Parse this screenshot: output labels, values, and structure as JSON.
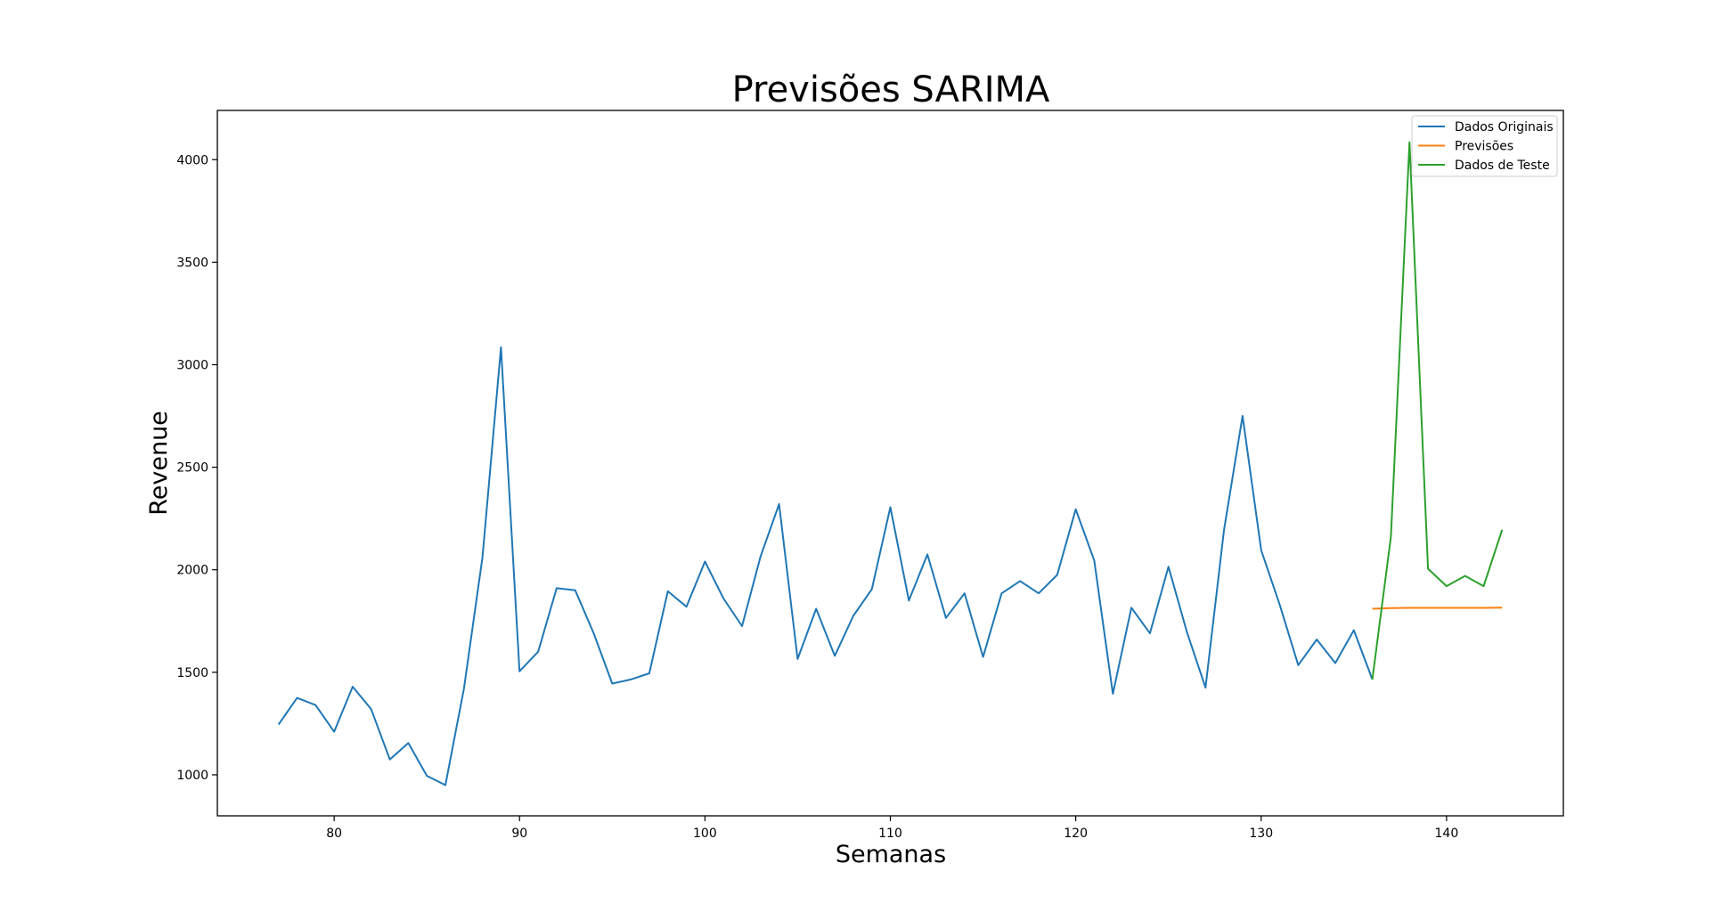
{
  "chart_data": {
    "type": "line",
    "title": "Previsões SARIMA",
    "xlabel": "Semanas",
    "ylabel": "Revenue",
    "xlim": [
      73.7,
      146.3
    ],
    "ylim": [
      800,
      4240
    ],
    "x_ticks": [
      80,
      90,
      100,
      110,
      120,
      130,
      140
    ],
    "y_ticks": [
      1000,
      1500,
      2000,
      2500,
      3000,
      3500,
      4000
    ],
    "grid": false,
    "legend_position": "top-right",
    "series": [
      {
        "name": "Dados Originais",
        "color": "#1f77b4",
        "x": [
          77,
          78,
          79,
          80,
          81,
          82,
          83,
          84,
          85,
          86,
          87,
          88,
          89,
          90,
          91,
          92,
          93,
          94,
          95,
          96,
          97,
          98,
          99,
          100,
          101,
          102,
          103,
          104,
          105,
          106,
          107,
          108,
          109,
          110,
          111,
          112,
          113,
          114,
          115,
          116,
          117,
          118,
          119,
          120,
          121,
          122,
          123,
          124,
          125,
          126,
          127,
          128,
          129,
          130,
          131,
          132,
          133,
          134,
          135,
          136
        ],
        "values": [
          1245,
          1375,
          1340,
          1210,
          1430,
          1320,
          1075,
          1155,
          995,
          950,
          1420,
          2060,
          3085,
          1505,
          1600,
          1910,
          1900,
          1690,
          1445,
          1465,
          1495,
          1895,
          1820,
          2040,
          1860,
          1725,
          2065,
          2320,
          1565,
          1810,
          1580,
          1775,
          1905,
          2305,
          1850,
          2075,
          1765,
          1885,
          1575,
          1885,
          1945,
          1885,
          1975,
          2295,
          2045,
          1395,
          1815,
          1690,
          2015,
          1695,
          1425,
          2195,
          2750,
          2095,
          1830,
          1535,
          1660,
          1545,
          1705,
          1465
        ]
      },
      {
        "name": "Previsões",
        "color": "#ff7f0e",
        "x": [
          136,
          137,
          138,
          139,
          140,
          141,
          142,
          143
        ],
        "values": [
          1810,
          1813,
          1814,
          1814,
          1814,
          1814,
          1814,
          1815
        ]
      },
      {
        "name": "Dados de Teste",
        "color": "#2ca02c",
        "x": [
          136,
          137,
          138,
          139,
          140,
          141,
          142,
          143
        ],
        "values": [
          1465,
          2160,
          4085,
          2005,
          1920,
          1970,
          1920,
          2195
        ]
      }
    ]
  }
}
